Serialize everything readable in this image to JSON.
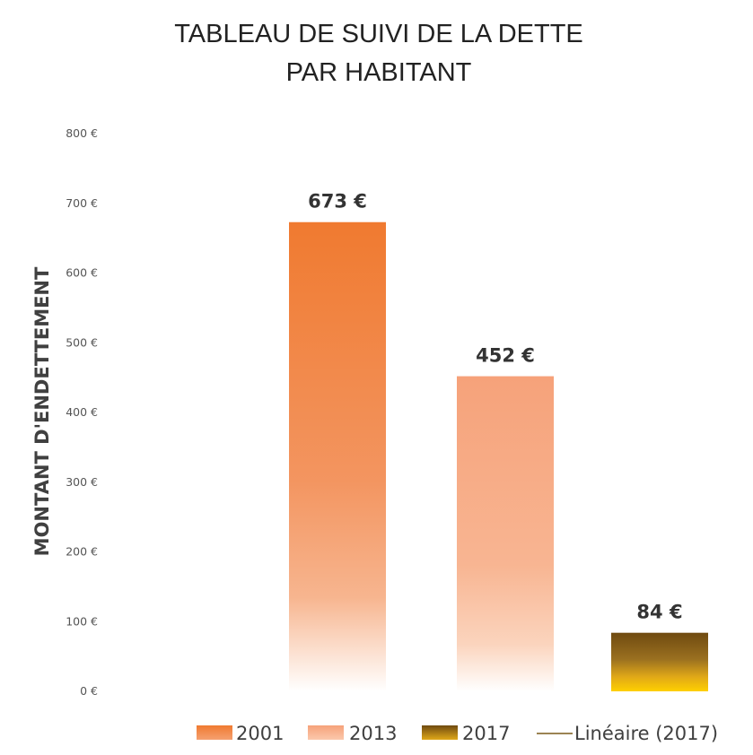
{
  "chart_data": {
    "type": "bar",
    "title_lines": [
      "TABLEAU DE SUIVI DE LA DETTE",
      "PAR HABITANT"
    ],
    "ylabel": "MONTANT D'ENDETTEMENT",
    "xlabel": "",
    "ylim": [
      0,
      800
    ],
    "yticks": [
      0,
      100,
      200,
      300,
      400,
      500,
      600,
      700,
      800
    ],
    "ytick_labels": [
      "0 €",
      "100 €",
      "200 €",
      "300 €",
      "400 €",
      "500 €",
      "600 €",
      "700 €",
      "800 €"
    ],
    "grid": false,
    "legend_position": "bottom",
    "series": [
      {
        "name": "2001",
        "value": 673,
        "label": "673 €",
        "color": "#f07a30",
        "gradient": "fade-white"
      },
      {
        "name": "2013",
        "value": 452,
        "label": "452 €",
        "color": "#f7a57b",
        "gradient": "fade-white"
      },
      {
        "name": "2017",
        "value": 84,
        "label": "84 €",
        "color": "#7a5210",
        "gradient": "brown-to-gold"
      }
    ],
    "trendline": {
      "name": "Linéaire (2017)",
      "color": "#7a5a1a"
    }
  }
}
